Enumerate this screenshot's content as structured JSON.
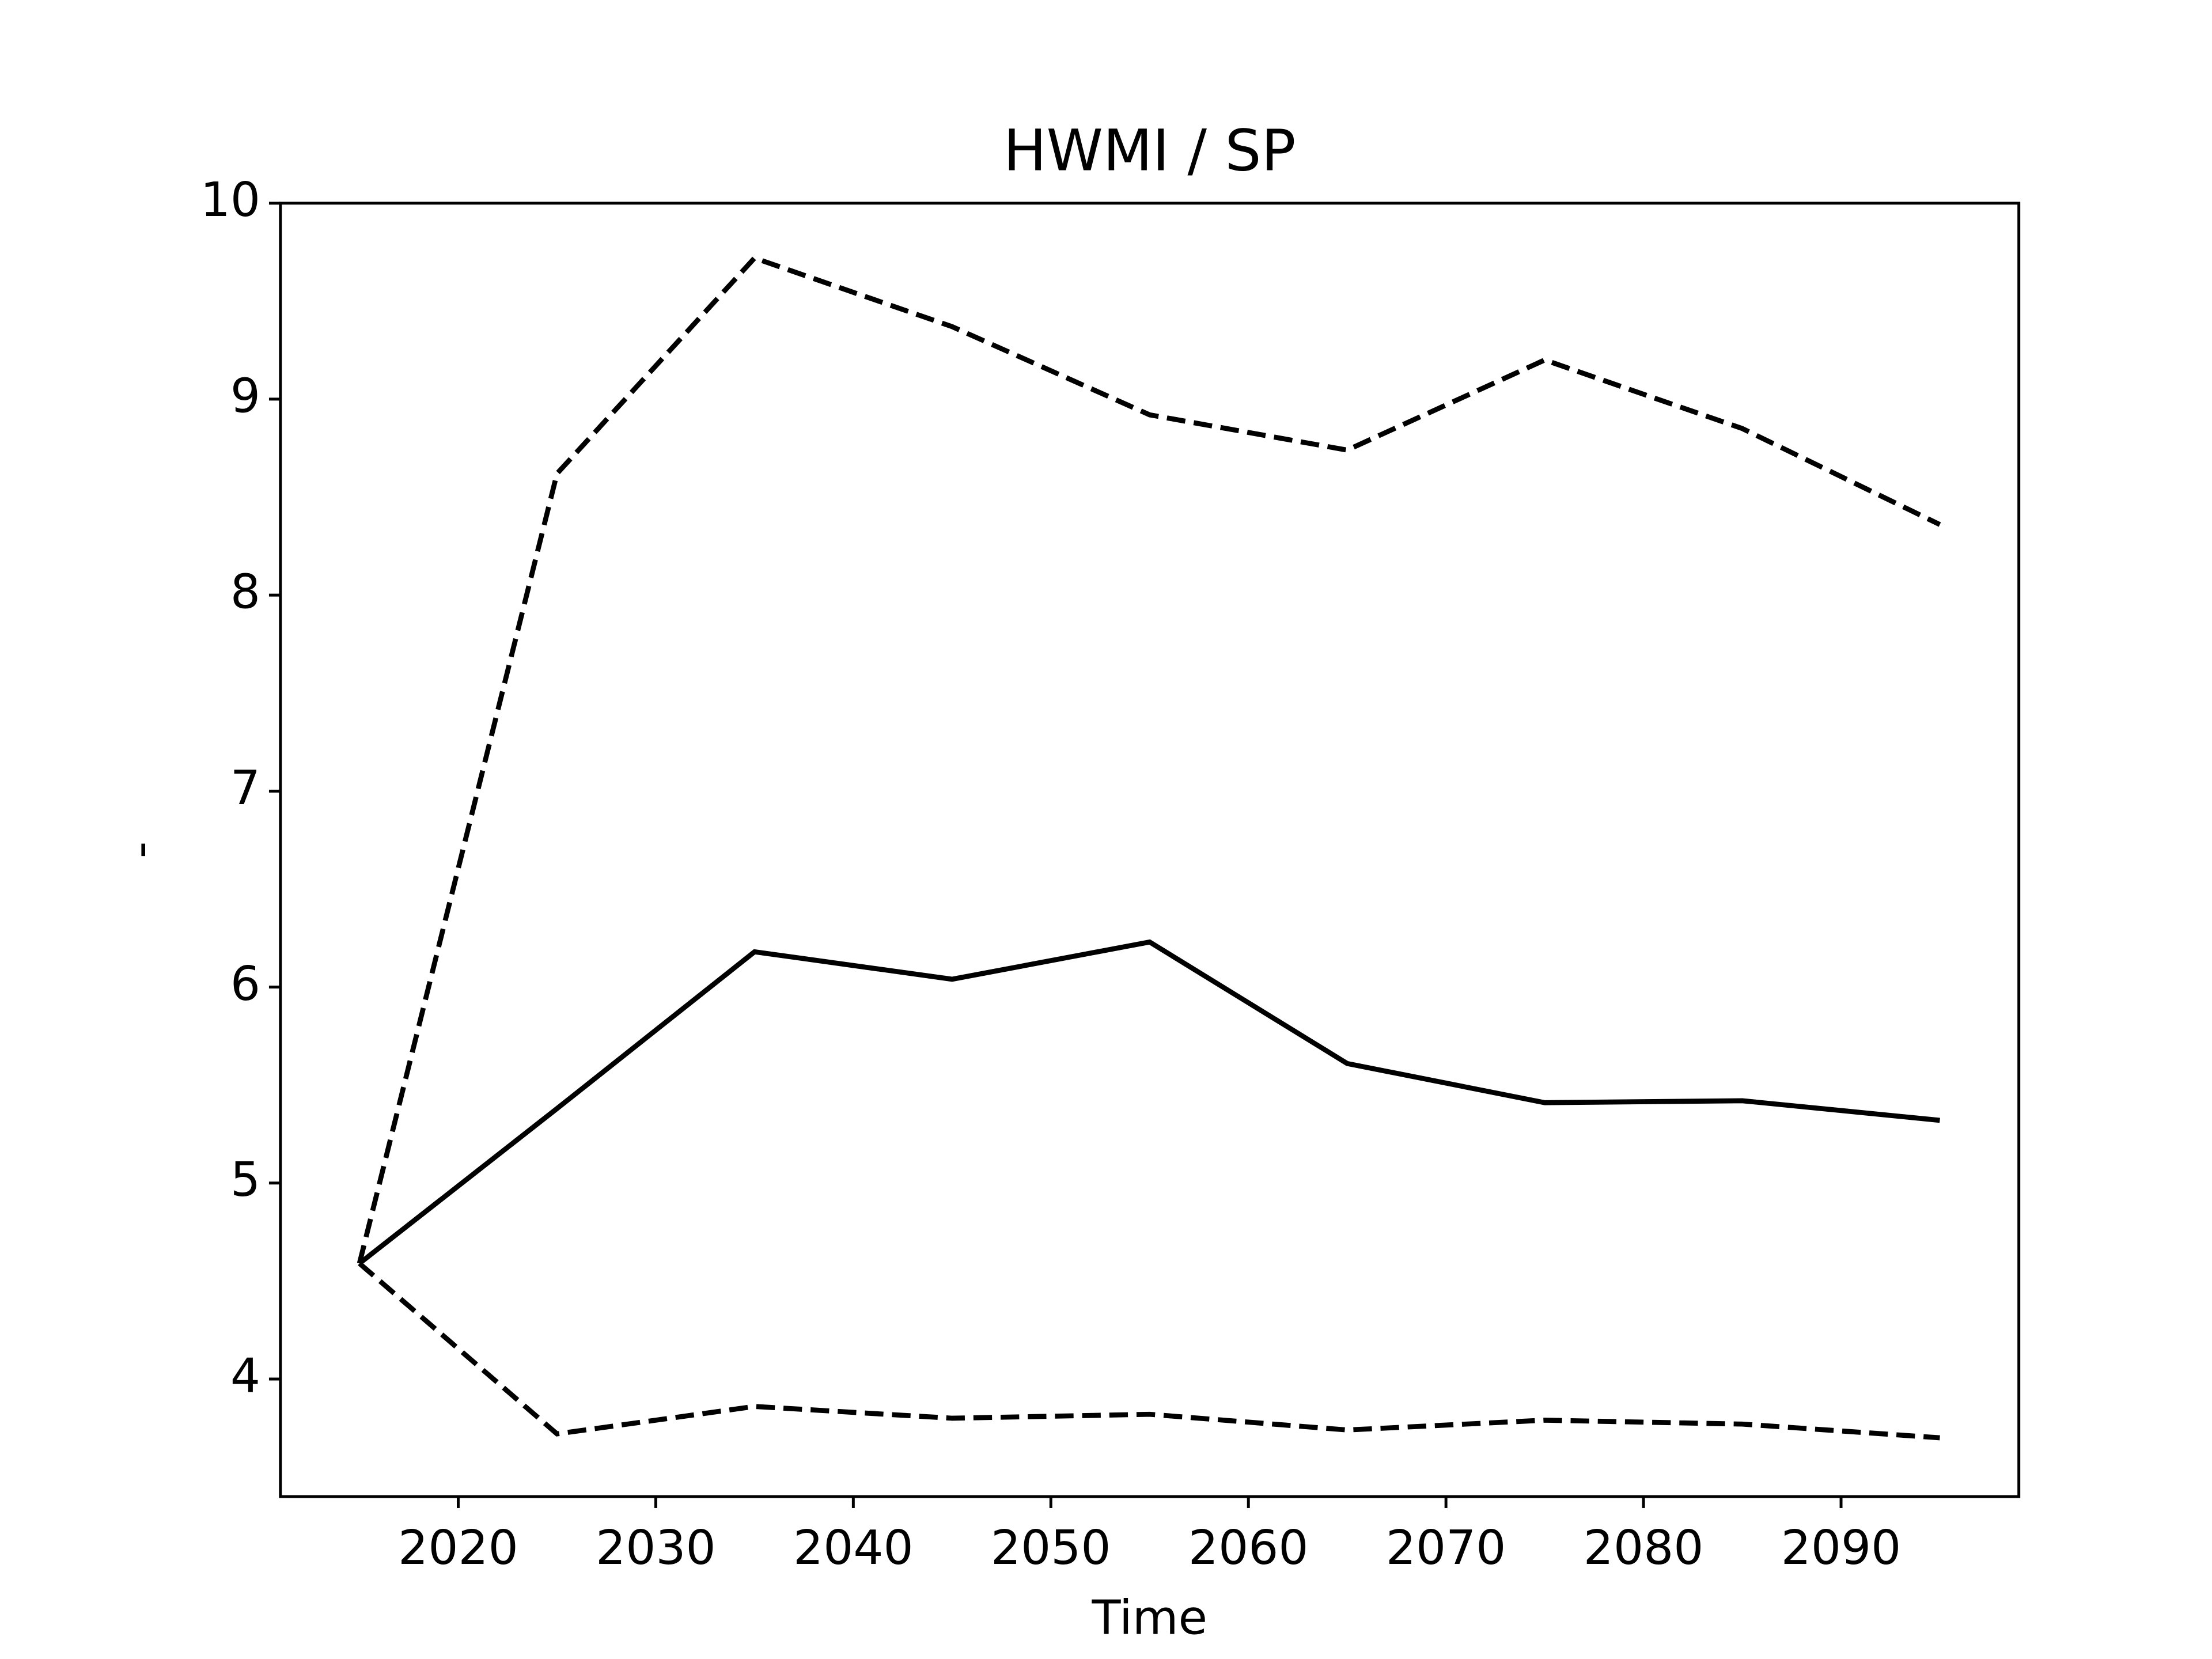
{
  "chart_data": {
    "type": "line",
    "title": "HWMI / SP",
    "xlabel": "Time",
    "ylabel": "-",
    "x": [
      2015,
      2025,
      2035,
      2045,
      2055,
      2065,
      2075,
      2085,
      2095
    ],
    "series": [
      {
        "color": "#000000",
        "linestyle": "solid",
        "values": [
          4.59,
          5.38,
          6.18,
          6.04,
          6.23,
          5.61,
          5.41,
          5.42,
          5.32
        ]
      },
      {
        "color": "#000000",
        "linestyle": "dashed",
        "values": [
          4.59,
          8.62,
          9.72,
          9.37,
          8.92,
          8.74,
          9.2,
          8.85,
          8.36
        ]
      },
      {
        "color": "#000000",
        "linestyle": "dashed",
        "values": [
          4.59,
          3.72,
          3.86,
          3.8,
          3.82,
          3.74,
          3.79,
          3.77,
          3.7
        ]
      }
    ],
    "xlim": [
      2011,
      2099
    ],
    "xticks": [
      2020,
      2030,
      2040,
      2050,
      2060,
      2070,
      2080,
      2090
    ],
    "ylim": [
      3.4,
      10
    ],
    "yticks": [
      4,
      5,
      6,
      7,
      8,
      9,
      10
    ],
    "grid": false
  }
}
